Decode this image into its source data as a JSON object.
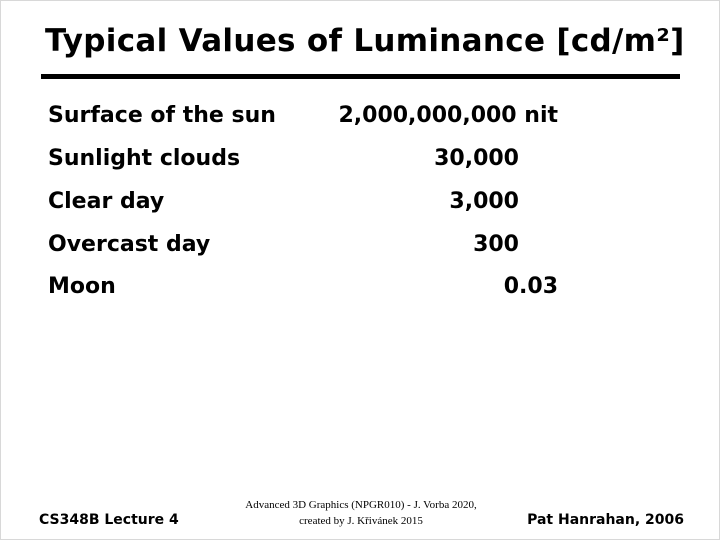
{
  "slide": {
    "title": "Typical Values of Luminance [cd/m²]",
    "rows": [
      {
        "label": "Surface of the sun",
        "value": "2,000,000,000 nit"
      },
      {
        "label": "Sunlight clouds",
        "value": "30,000"
      },
      {
        "label": "Clear day",
        "value": "3,000"
      },
      {
        "label": "Overcast day",
        "value": "300"
      },
      {
        "label": "Moon",
        "value": "0.03"
      }
    ],
    "footer": {
      "left": "CS348B Lecture 4",
      "right": "Pat Hanrahan, 2006",
      "credit_line1": "Advanced 3D Graphics (NPGR010) - J. Vorba 2020,",
      "credit_line2": "created by J. Křivánek 2015"
    }
  }
}
